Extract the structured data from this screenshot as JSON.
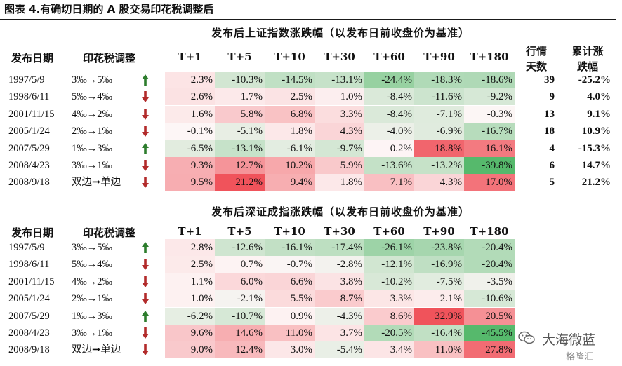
{
  "title": "图表 4.有确切日期的 A 股交易印花税调整后",
  "colors": {
    "neg_strong": "#56b96c",
    "pos_strong": "#f0535b",
    "neutral": "#fdf6f6",
    "arrow_up": "#2d7d2d",
    "arrow_down": "#b22b2b"
  },
  "headers": {
    "date": "发布日期",
    "tax": "印花税调整",
    "horizons": [
      "T+1",
      "T+5",
      "T+10",
      "T+30",
      "T+60",
      "T+90",
      "T+180"
    ],
    "count_line1": "行情",
    "count_line2": "天数",
    "cum_line1": "累计涨",
    "cum_line2": "跌幅"
  },
  "sections": [
    {
      "title": "发布后上证指数涨跌幅（以发布日前收盘价为基准）",
      "rows": [
        {
          "date": "1997/5/9",
          "tax": "3‰→5‰",
          "arrow": "up",
          "values": [
            2.3,
            -10.3,
            -14.5,
            -13.1,
            -24.4,
            -18.3,
            -18.6
          ],
          "labels": [
            "2.3%",
            "-10.3%",
            "-14.5%",
            "-13.1%",
            "-24.4%",
            "-18.3%",
            "-18.6%"
          ],
          "count": "39",
          "cum": "-25.2%"
        },
        {
          "date": "1998/6/11",
          "tax": "5‰→4‰",
          "arrow": "down",
          "values": [
            2.6,
            1.7,
            2.5,
            1.0,
            -8.4,
            -11.6,
            -9.2
          ],
          "labels": [
            "2.6%",
            "1.7%",
            "2.5%",
            "1.0%",
            "-8.4%",
            "-11.6%",
            "-9.2%"
          ],
          "count": "9",
          "cum": "4.0%"
        },
        {
          "date": "2001/11/15",
          "tax": "4‰→2‰",
          "arrow": "down",
          "values": [
            1.6,
            5.8,
            6.8,
            3.3,
            -8.4,
            -7.1,
            -0.3
          ],
          "labels": [
            "1.6%",
            "5.8%",
            "6.8%",
            "3.3%",
            "-8.4%",
            "-7.1%",
            "-0.3%"
          ],
          "count": "13",
          "cum": "9.1%"
        },
        {
          "date": "2005/1/24",
          "tax": "2‰→1‰",
          "arrow": "down",
          "values": [
            -0.1,
            -5.1,
            1.8,
            4.3,
            -4.0,
            -6.9,
            -16.7
          ],
          "labels": [
            "-0.1%",
            "-5.1%",
            "1.8%",
            "4.3%",
            "-4.0%",
            "-6.9%",
            "-16.7%"
          ],
          "count": "18",
          "cum": "10.9%"
        },
        {
          "date": "2007/5/29",
          "tax": "1‰→3‰",
          "arrow": "up",
          "values": [
            -6.5,
            -13.1,
            -6.1,
            -9.7,
            0.2,
            18.8,
            16.1
          ],
          "labels": [
            "-6.5%",
            "-13.1%",
            "-6.1%",
            "-9.7%",
            "0.2%",
            "18.8%",
            "16.1%"
          ],
          "count": "4",
          "cum": "-15.3%"
        },
        {
          "date": "2008/4/23",
          "tax": "3‰→1‰",
          "arrow": "down",
          "values": [
            9.3,
            12.7,
            10.2,
            5.9,
            -13.6,
            -13.2,
            -39.8
          ],
          "labels": [
            "9.3%",
            "12.7%",
            "10.2%",
            "5.9%",
            "-13.6%",
            "-13.2%",
            "-39.8%"
          ],
          "count": "6",
          "cum": "14.7%"
        },
        {
          "date": "2008/9/18",
          "tax": "双边➞单边",
          "arrow": "down",
          "values": [
            9.5,
            21.2,
            9.4,
            1.8,
            7.1,
            4.3,
            17.0
          ],
          "labels": [
            "9.5%",
            "21.2%",
            "9.4%",
            "1.8%",
            "7.1%",
            "4.3%",
            "17.0%"
          ],
          "count": "5",
          "cum": "21.2%"
        }
      ]
    },
    {
      "title": "发布后深证成指涨跌幅（以发布日前收盘价为基准）",
      "rows": [
        {
          "date": "1997/5/9",
          "tax": "3‰→5‰",
          "arrow": "up",
          "values": [
            2.8,
            -12.6,
            -16.1,
            -17.4,
            -26.1,
            -23.8,
            -20.4
          ],
          "labels": [
            "2.8%",
            "-12.6%",
            "-16.1%",
            "-17.4%",
            "-26.1%",
            "-23.8%",
            "-20.4%"
          ]
        },
        {
          "date": "1998/6/11",
          "tax": "5‰→4‰",
          "arrow": "down",
          "values": [
            2.5,
            0.7,
            -0.7,
            -2.8,
            -12.1,
            -16.9,
            -20.4
          ],
          "labels": [
            "2.5%",
            "0.7%",
            "-0.7%",
            "-2.8%",
            "-12.1%",
            "-16.9%",
            "-20.4%"
          ]
        },
        {
          "date": "2001/11/15",
          "tax": "4‰→2‰",
          "arrow": "down",
          "values": [
            1.1,
            6.0,
            6.6,
            3.8,
            -10.2,
            -7.5,
            -3.5
          ],
          "labels": [
            "1.1%",
            "6.0%",
            "6.6%",
            "3.8%",
            "-10.2%",
            "-7.5%",
            "-3.5%"
          ]
        },
        {
          "date": "2005/1/24",
          "tax": "2‰→1‰",
          "arrow": "down",
          "values": [
            1.0,
            -2.1,
            5.5,
            8.7,
            3.3,
            2.1,
            -10.6
          ],
          "labels": [
            "1.0%",
            "-2.1%",
            "5.5%",
            "8.7%",
            "3.3%",
            "2.1%",
            "-10.6%"
          ]
        },
        {
          "date": "2007/5/29",
          "tax": "1‰→3‰",
          "arrow": "up",
          "values": [
            -6.2,
            -10.7,
            0.9,
            -4.3,
            8.6,
            32.9,
            20.5
          ],
          "labels": [
            "-6.2%",
            "-10.7%",
            "0.9%",
            "-4.3%",
            "8.6%",
            "32.9%",
            "20.5%"
          ]
        },
        {
          "date": "2008/4/23",
          "tax": "3‰→1‰",
          "arrow": "down",
          "values": [
            9.6,
            14.6,
            11.0,
            3.7,
            -20.5,
            -16.4,
            -45.5
          ],
          "labels": [
            "9.6%",
            "14.6%",
            "11.0%",
            "3.7%",
            "-20.5%",
            "-16.4%",
            "-45.5%"
          ]
        },
        {
          "date": "2008/9/18",
          "tax": "双边➞单边",
          "arrow": "down",
          "values": [
            9.0,
            12.4,
            3.0,
            -5.4,
            3.4,
            11.0,
            27.8
          ],
          "labels": [
            "9.0%",
            "12.4%",
            "3.0%",
            "-5.4%",
            "3.4%",
            "11.0%",
            "27.8%"
          ]
        }
      ]
    }
  ],
  "watermark": {
    "text": "大海微蓝",
    "sub": "格隆汇",
    "icon": "wechat-icon"
  }
}
